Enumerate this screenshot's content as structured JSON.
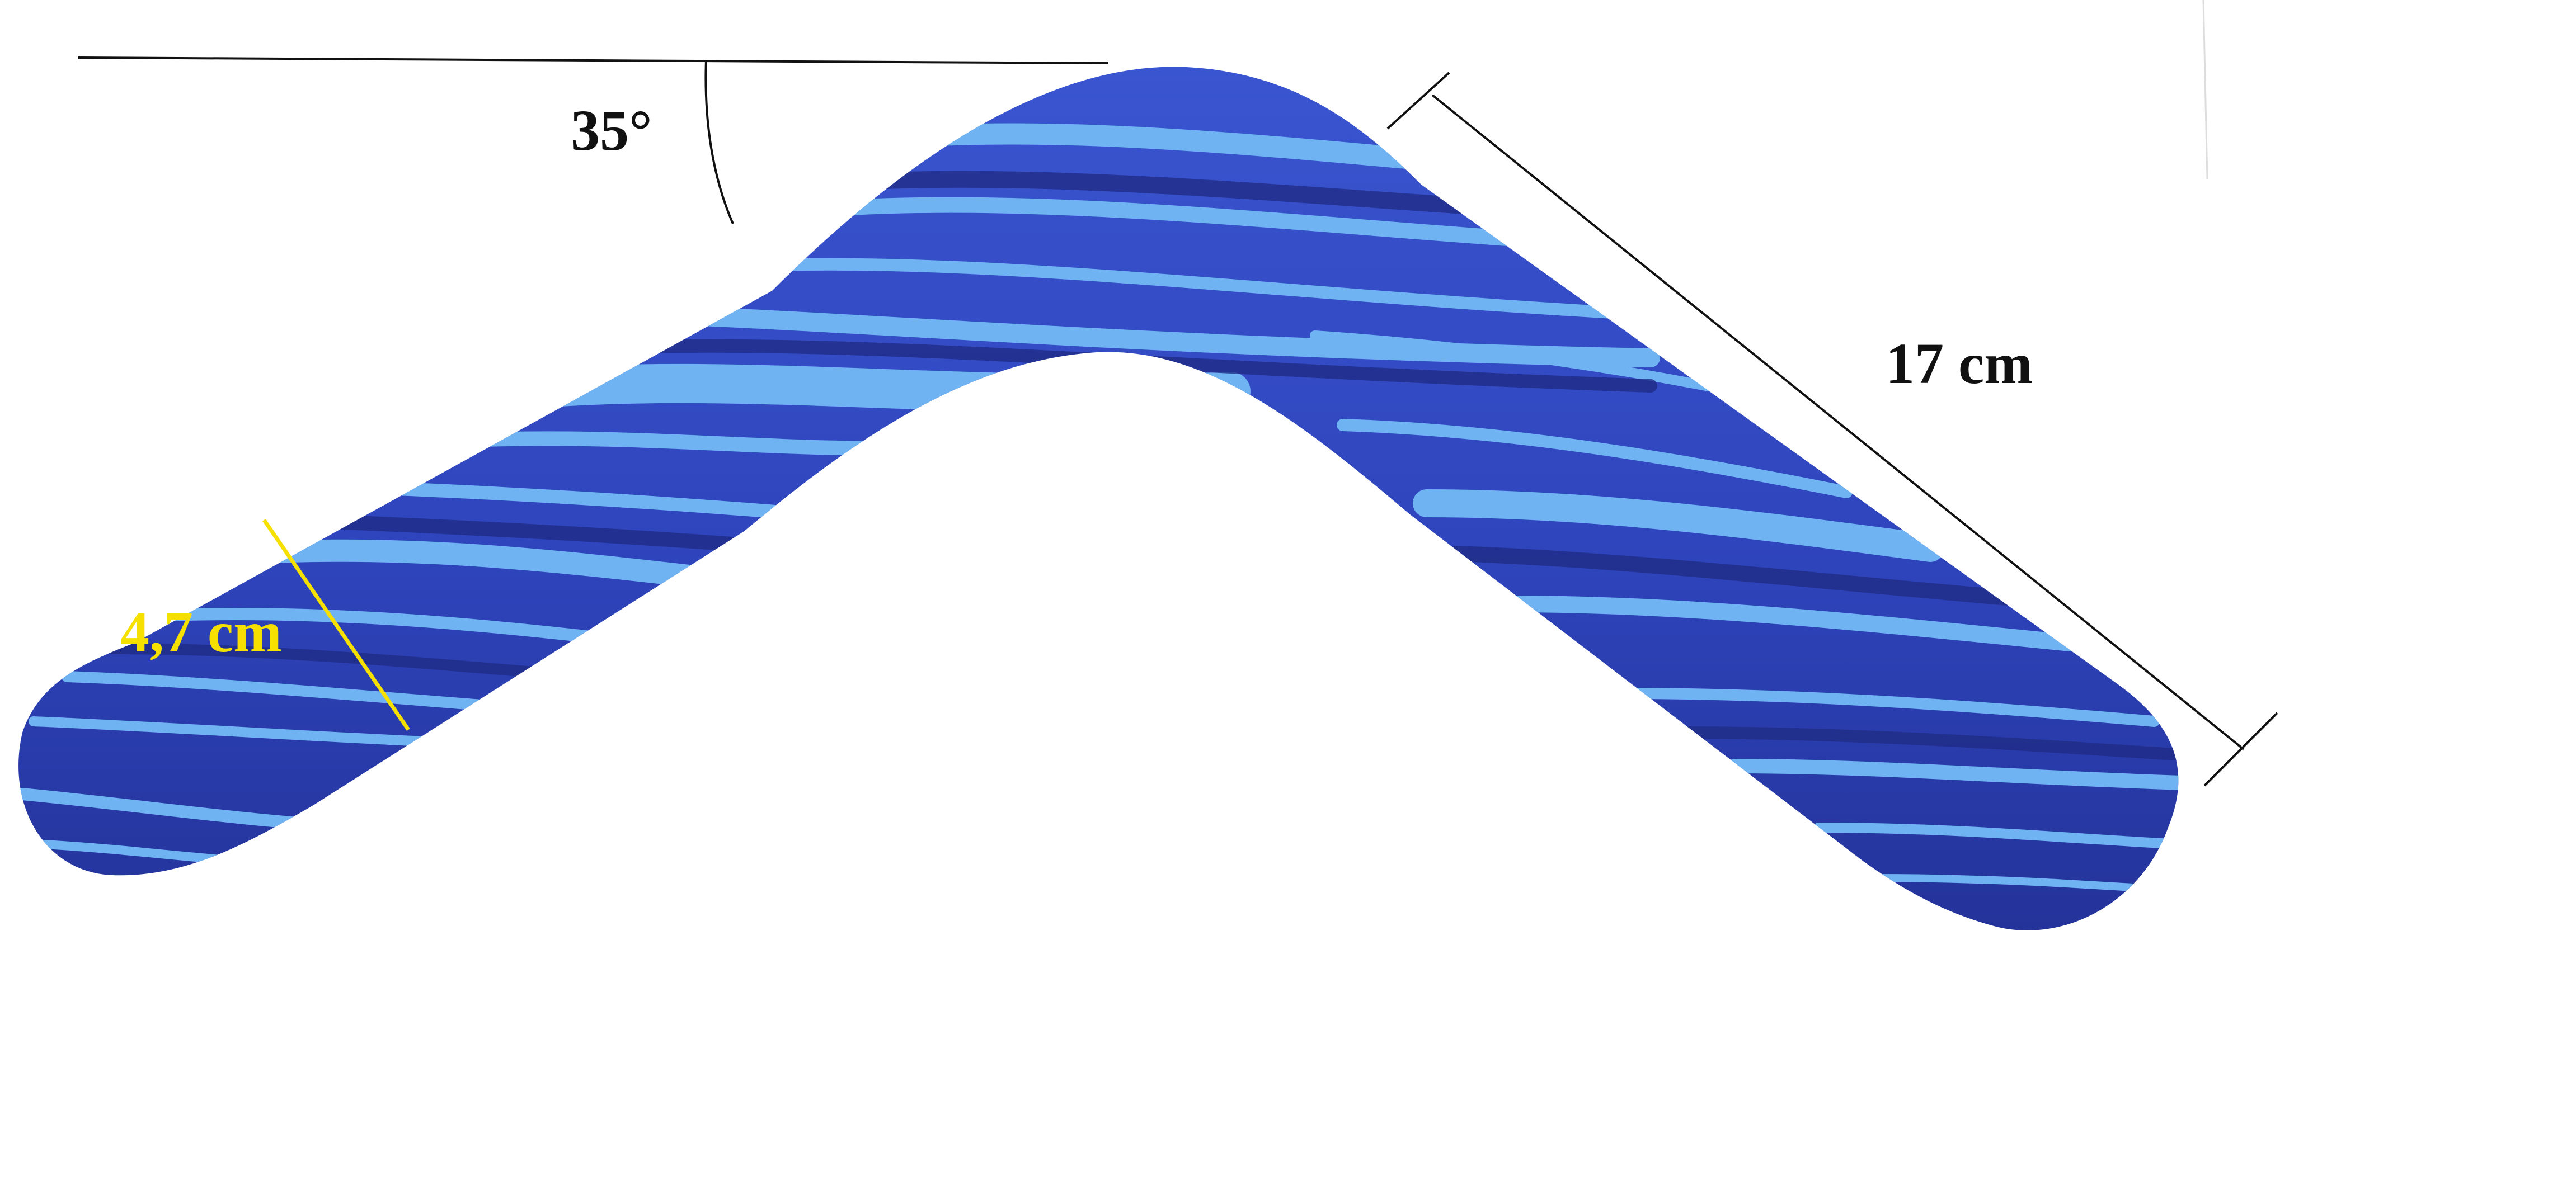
{
  "annotations": {
    "angle_label": "35°",
    "length_label": "17 cm",
    "width_label": "4,7 cm"
  },
  "colors": {
    "boomerang_dark": "#2d3eb3",
    "boomerang_mid": "#3a55d0",
    "stripe_light": "#6fb3f2",
    "width_marker": "#f5e000",
    "lines": "#111111",
    "background": "#ffffff"
  }
}
